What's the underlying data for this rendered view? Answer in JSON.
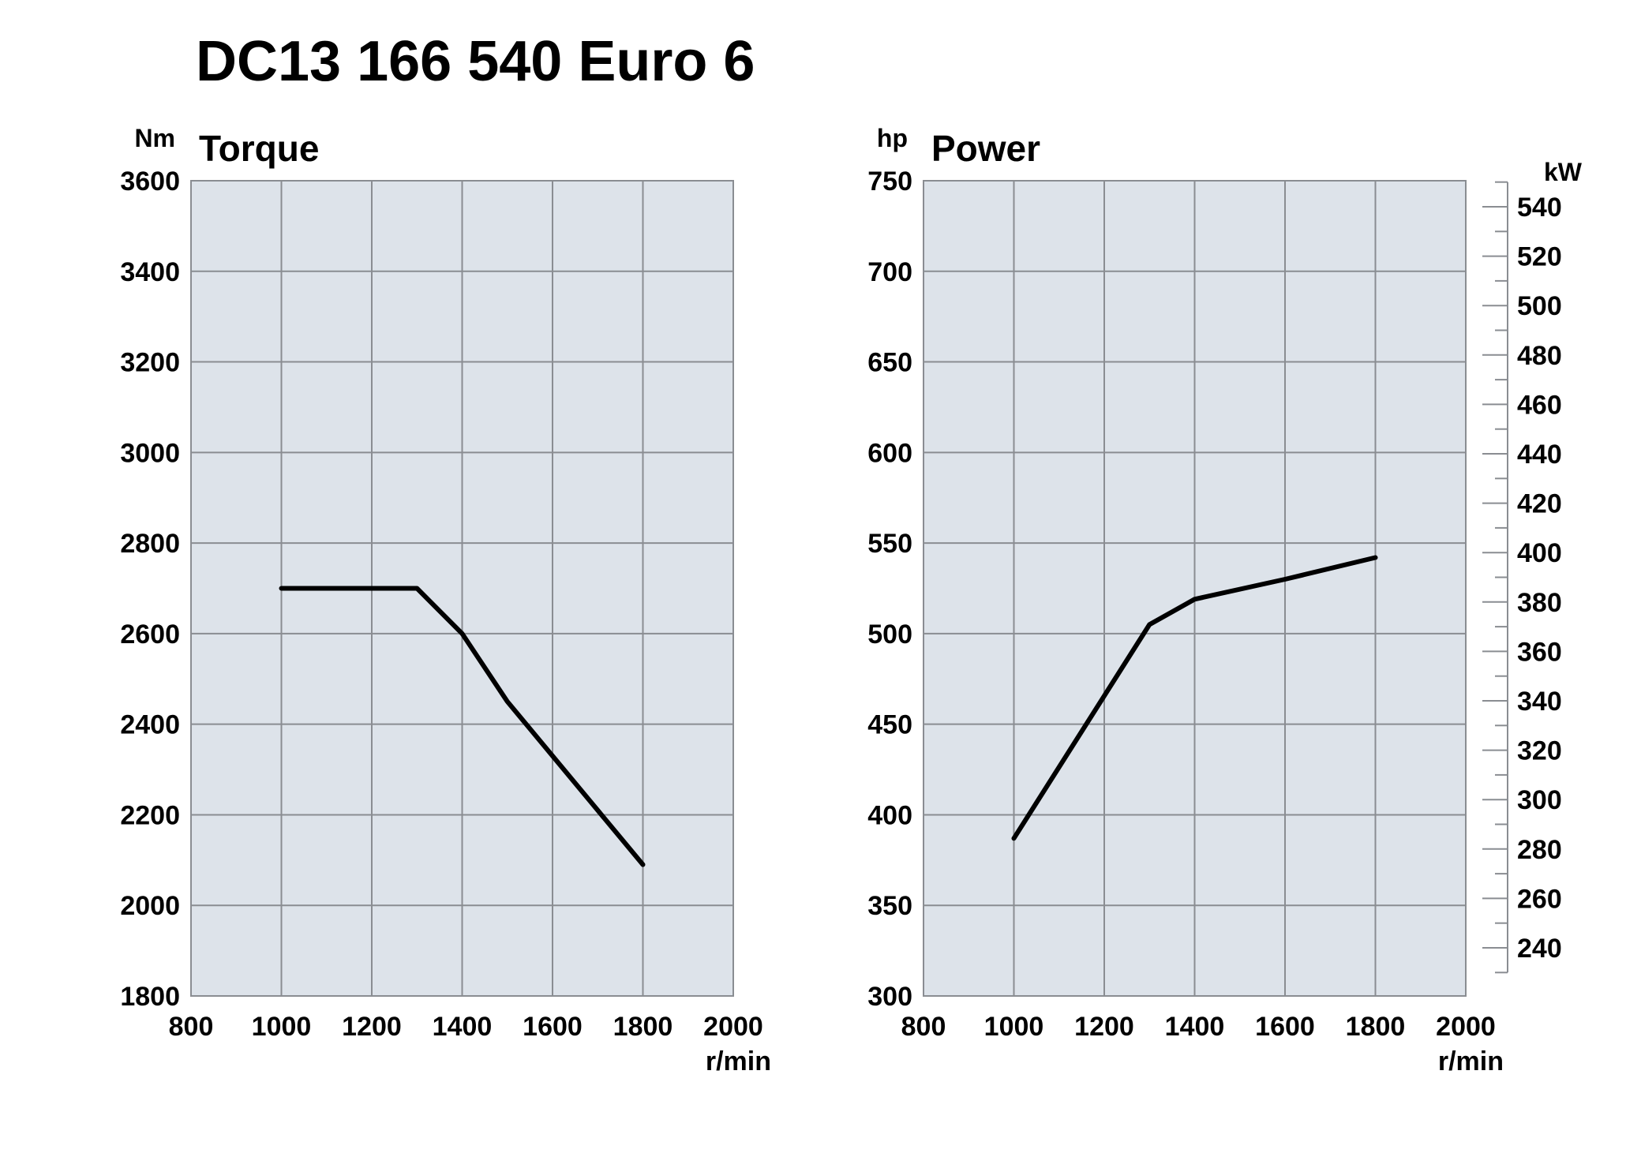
{
  "title": "DC13 166 540 Euro 6",
  "chart_data": [
    {
      "type": "line",
      "title": "Torque",
      "ylabel": "Nm",
      "xlabel": "r/min",
      "xlim": [
        800,
        2000
      ],
      "ylim": [
        1800,
        3600
      ],
      "xticks": [
        "800",
        "1000",
        "1200",
        "1400",
        "1600",
        "1800",
        "2000"
      ],
      "yticks": [
        "1800",
        "2000",
        "2200",
        "2400",
        "2600",
        "2800",
        "3000",
        "3200",
        "3400",
        "3600"
      ],
      "grid": true,
      "series": [
        {
          "x": [
            1000,
            1300,
            1400,
            1500,
            1600,
            1800
          ],
          "y": [
            2700,
            2700,
            2600,
            2450,
            2330,
            2090
          ]
        }
      ]
    },
    {
      "type": "line",
      "title": "Power",
      "ylabel": "hp",
      "y2label": "kW",
      "xlabel": "r/min",
      "xlim": [
        800,
        2000
      ],
      "ylim": [
        300,
        750
      ],
      "xticks": [
        "800",
        "1000",
        "1200",
        "1400",
        "1600",
        "1800",
        "2000"
      ],
      "yticks": [
        "300",
        "350",
        "400",
        "450",
        "500",
        "550",
        "600",
        "650",
        "700",
        "750"
      ],
      "y2ticks": [
        "240",
        "260",
        "280",
        "300",
        "320",
        "340",
        "360",
        "380",
        "400",
        "420",
        "440",
        "460",
        "480",
        "500",
        "520",
        "540"
      ],
      "grid": true,
      "series": [
        {
          "x": [
            1000,
            1300,
            1400,
            1600,
            1800
          ],
          "y": [
            387,
            505,
            519,
            530,
            542
          ]
        }
      ]
    }
  ]
}
